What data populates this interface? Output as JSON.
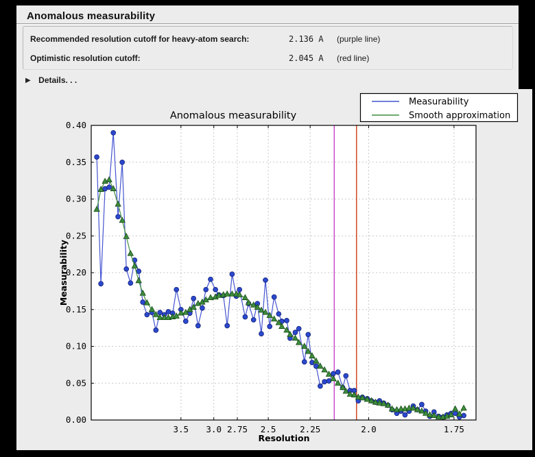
{
  "window": {
    "title": "Anomalous measurability"
  },
  "summary": {
    "rows": [
      {
        "label": "Recommended resolution cutoff for heavy-atom search:",
        "value": "2.136 A",
        "note": "(purple line)"
      },
      {
        "label": "Optimistic resolution cutoff:",
        "value": "2.045 A",
        "note": "(red line)"
      }
    ],
    "details_label": "Details. . .",
    "details_icon": "right-pointing-triangle"
  },
  "chart_data": {
    "type": "line",
    "title": "Anomalous measurability",
    "xlabel": "Resolution",
    "ylabel": "Measurability",
    "x_axis_unit": "Angstrom (axis linear in 1/d^2, decreasing d rightwards)",
    "x_tick_labels": [
      "3.5",
      "3.0",
      "2.75",
      "2.5",
      "2.25",
      "2.0",
      "1.75"
    ],
    "x_ticks_d": [
      3.5,
      3.0,
      2.75,
      2.5,
      2.25,
      2.0,
      1.75
    ],
    "x_domain_inv_d2": [
      0.0012,
      0.3463
    ],
    "y_tick_labels": [
      "0.00",
      "0.05",
      "0.10",
      "0.15",
      "0.20",
      "0.25",
      "0.30",
      "0.35",
      "0.40"
    ],
    "ylim": [
      0.0,
      0.4
    ],
    "grid": true,
    "legend_position": "top-right",
    "colors": {
      "measurability": "#4353cf",
      "measurability_marker": "#2b49cf",
      "smooth": "#3e8e3e",
      "smooth_marker": "#3e8e3e",
      "purple_cutoff": "#c841c8",
      "red_cutoff": "#cf3a10",
      "gridline": "#c9c9c9",
      "plot_background": "#ffffff",
      "figure_background": "#ececec"
    },
    "d": [
      12.73,
      10.06,
      8.58,
      7.61,
      6.9,
      6.29,
      5.87,
      5.53,
      5.24,
      4.99,
      4.78,
      4.59,
      4.42,
      4.24,
      4.11,
      3.99,
      3.87,
      3.77,
      3.67,
      3.59,
      3.5,
      3.41,
      3.34,
      3.28,
      3.21,
      3.15,
      3.1,
      3.04,
      2.98,
      2.94,
      2.89,
      2.85,
      2.8,
      2.76,
      2.73,
      2.68,
      2.65,
      2.61,
      2.58,
      2.55,
      2.52,
      2.49,
      2.46,
      2.43,
      2.41,
      2.38,
      2.36,
      2.33,
      2.31,
      2.28,
      2.26,
      2.24,
      2.22,
      2.2,
      2.18,
      2.16,
      2.14,
      2.12,
      2.1,
      2.087,
      2.07,
      2.054,
      2.038,
      2.023,
      2.005,
      1.99,
      1.976,
      1.962,
      1.948,
      1.934,
      1.921,
      1.906,
      1.893,
      1.881,
      1.869,
      1.857,
      1.845,
      1.833,
      1.822,
      1.811,
      1.8,
      1.788,
      1.777,
      1.767,
      1.757,
      1.747,
      1.737,
      1.727
    ],
    "series": [
      {
        "name": "Measurability",
        "marker": "circle",
        "values": [
          0.357,
          0.185,
          0.314,
          0.316,
          0.39,
          0.276,
          0.35,
          0.205,
          0.186,
          0.217,
          0.202,
          0.16,
          0.143,
          0.146,
          0.122,
          0.146,
          0.143,
          0.147,
          0.145,
          0.177,
          0.15,
          0.134,
          0.145,
          0.165,
          0.128,
          0.152,
          0.177,
          0.191,
          0.177,
          0.17,
          0.169,
          0.128,
          0.198,
          0.168,
          0.177,
          0.14,
          0.158,
          0.136,
          0.158,
          0.117,
          0.19,
          0.127,
          0.167,
          0.144,
          0.134,
          0.135,
          0.111,
          0.119,
          0.124,
          0.079,
          0.116,
          0.078,
          0.073,
          0.046,
          0.052,
          0.053,
          0.063,
          0.065,
          0.044,
          0.06,
          0.04,
          0.04,
          0.026,
          0.031,
          0.029,
          0.026,
          0.024,
          0.026,
          0.023,
          0.02,
          0.014,
          0.009,
          0.012,
          0.007,
          0.012,
          0.019,
          0.014,
          0.021,
          0.012,
          0.005,
          0.011,
          0.005,
          0.004,
          0.007,
          0.009,
          0.009,
          0.004,
          0.006
        ]
      },
      {
        "name": "Smooth approximation",
        "marker": "triangle",
        "values": [
          0.286,
          0.313,
          0.324,
          0.326,
          0.314,
          0.293,
          0.271,
          0.249,
          0.226,
          0.209,
          0.189,
          0.172,
          0.159,
          0.15,
          0.143,
          0.139,
          0.139,
          0.139,
          0.14,
          0.141,
          0.145,
          0.146,
          0.15,
          0.153,
          0.158,
          0.16,
          0.163,
          0.166,
          0.167,
          0.169,
          0.17,
          0.171,
          0.171,
          0.171,
          0.17,
          0.166,
          0.159,
          0.156,
          0.153,
          0.149,
          0.146,
          0.142,
          0.137,
          0.132,
          0.127,
          0.122,
          0.116,
          0.111,
          0.105,
          0.1,
          0.093,
          0.087,
          0.08,
          0.073,
          0.068,
          0.062,
          0.056,
          0.05,
          0.044,
          0.039,
          0.035,
          0.034,
          0.031,
          0.03,
          0.028,
          0.026,
          0.024,
          0.023,
          0.022,
          0.02,
          0.015,
          0.014,
          0.015,
          0.015,
          0.016,
          0.016,
          0.014,
          0.012,
          0.009,
          0.007,
          0.006,
          0.004,
          0.004,
          0.005,
          0.007,
          0.015,
          0.008,
          0.016
        ]
      }
    ],
    "cutoff_lines": [
      {
        "name": "purple-cutoff-line",
        "d": 2.136,
        "color_key": "purple_cutoff"
      },
      {
        "name": "red-cutoff-line",
        "d": 2.045,
        "color_key": "red_cutoff"
      }
    ]
  }
}
